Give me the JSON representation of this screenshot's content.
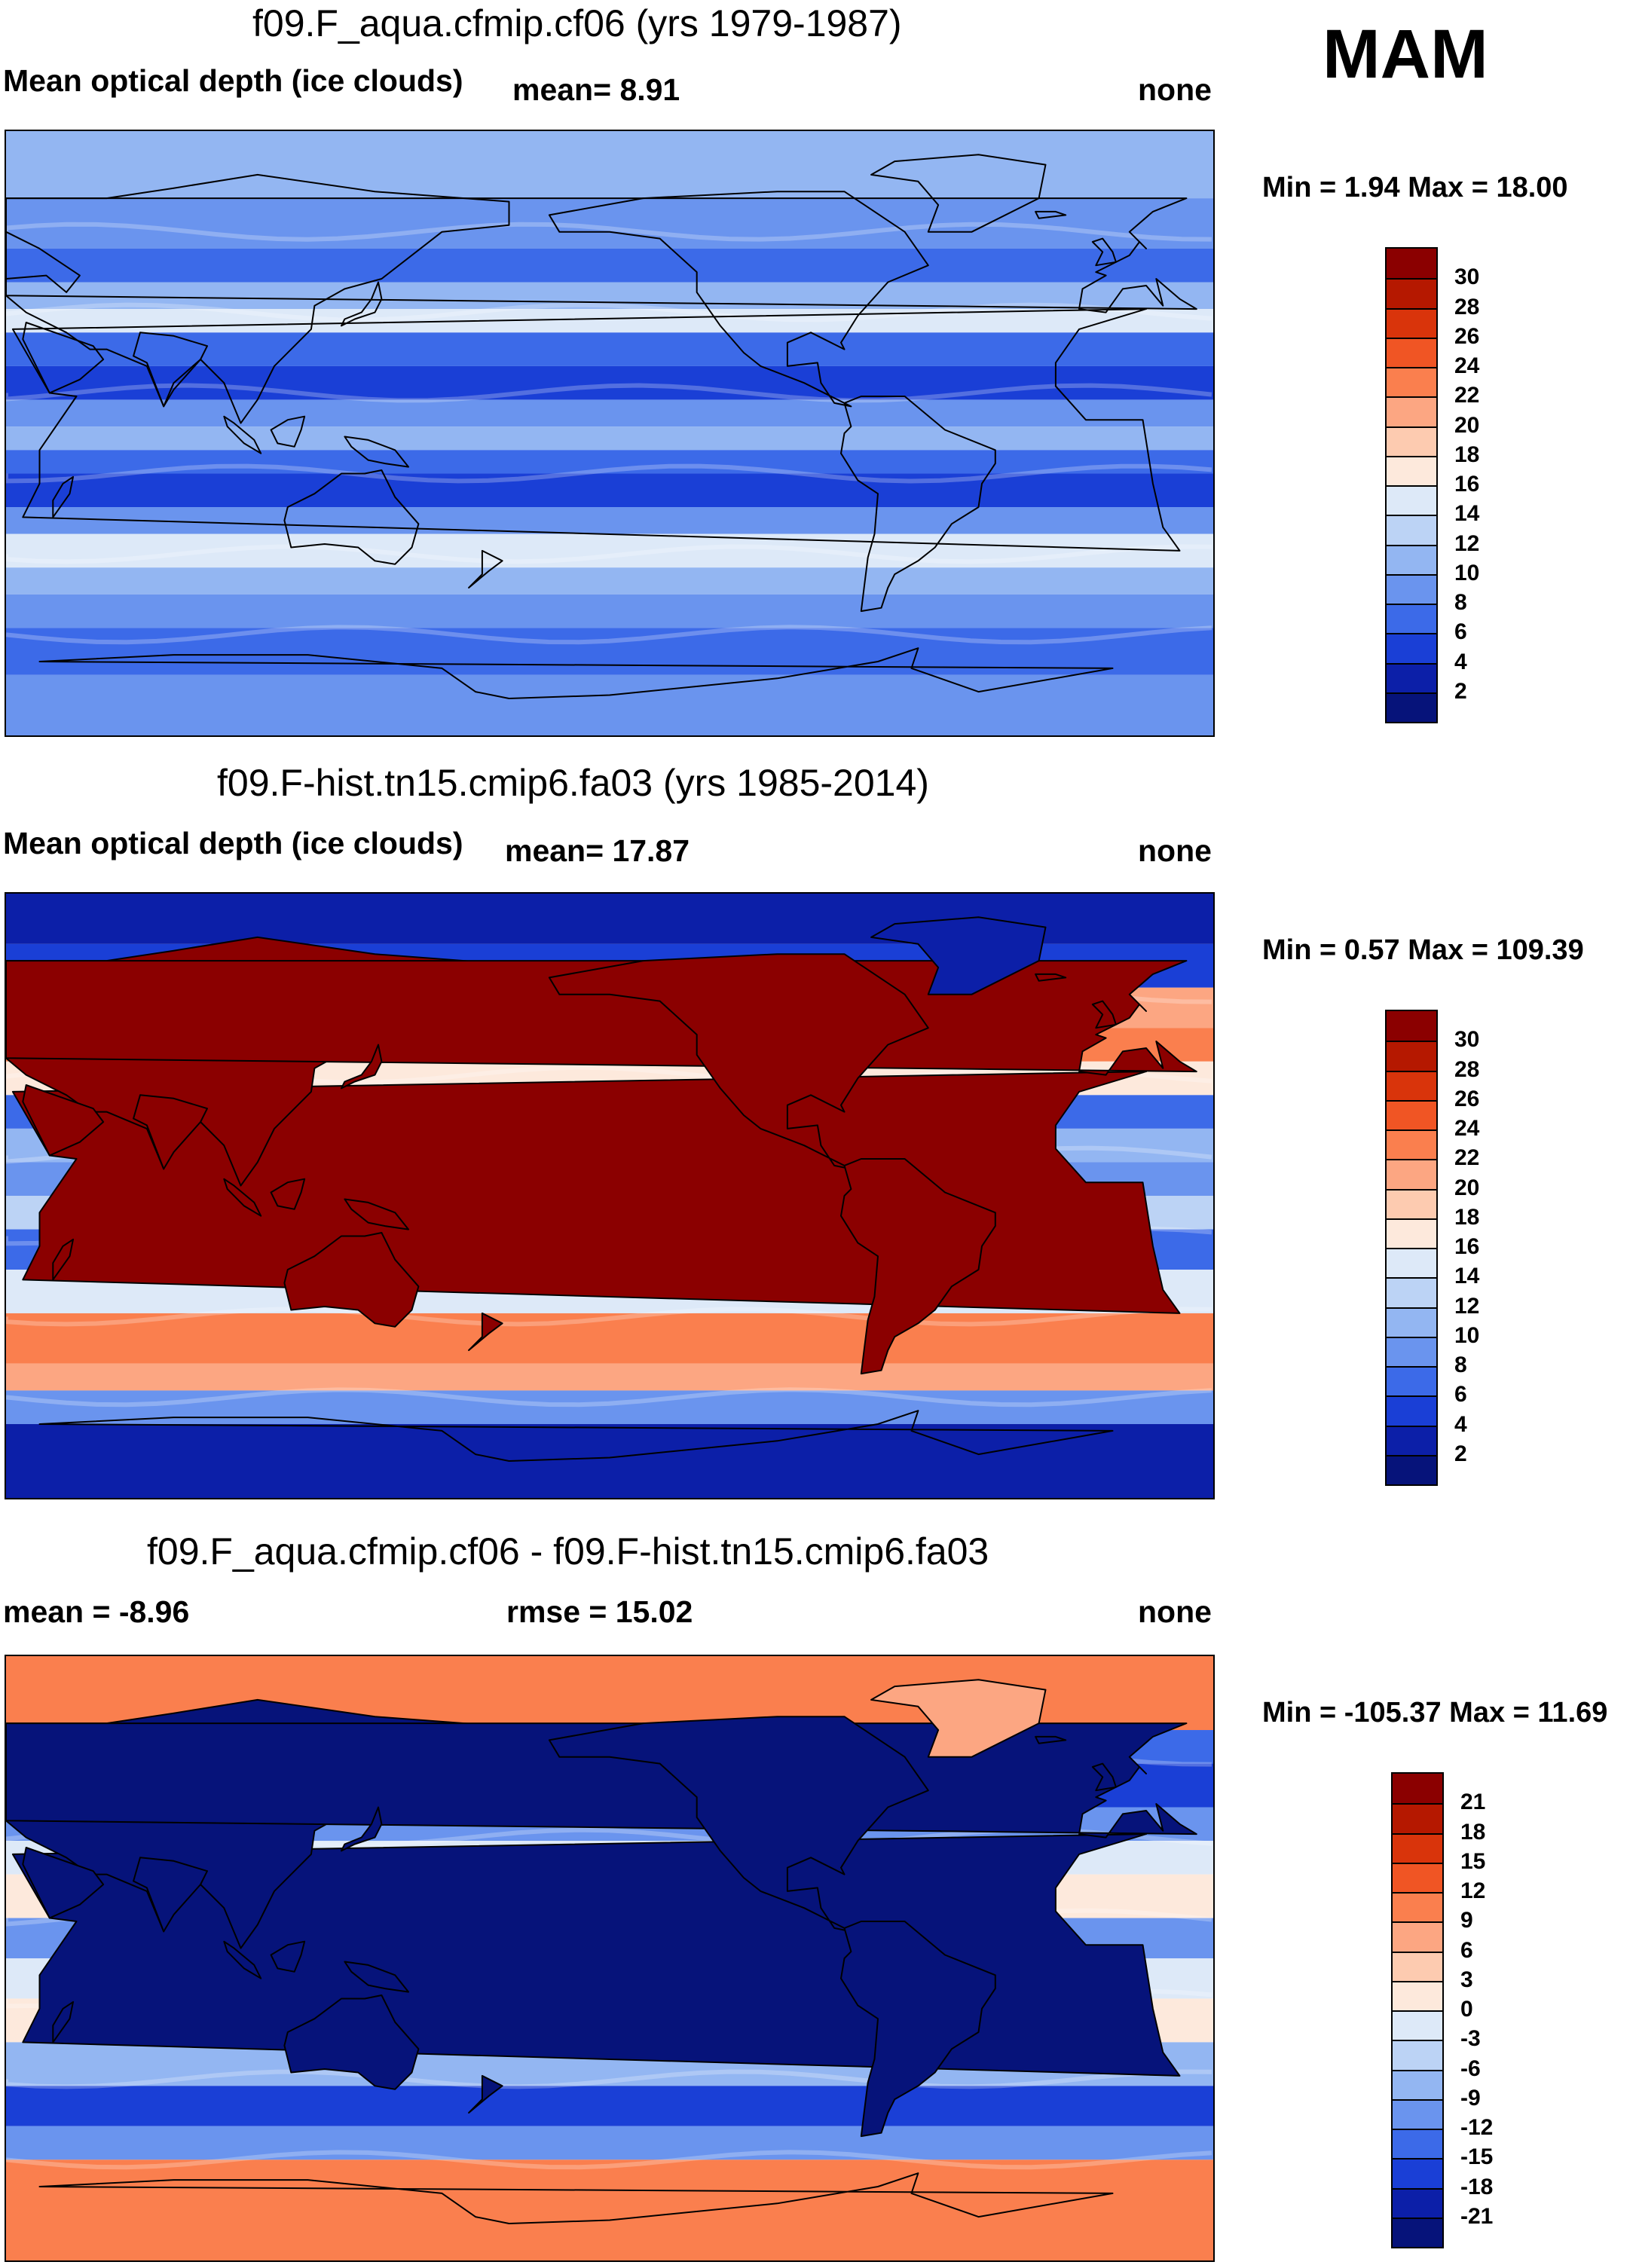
{
  "season": "MAM",
  "panels": [
    {
      "title": "f09.F_aqua.cfmip.cf06 (yrs 1979-1987)",
      "left_label": "Mean optical depth (ice clouds)",
      "mid_label": "mean=   8.91",
      "right_label": "none",
      "minmax": "Min =   1.94 Max =  18.00",
      "field": "zonal-bands",
      "colorbar": {
        "labels": [
          "30",
          "28",
          "26",
          "24",
          "22",
          "20",
          "18",
          "16",
          "14",
          "12",
          "10",
          "8",
          "6",
          "4",
          "2"
        ],
        "colors": [
          "#8b0000",
          "#b51800",
          "#d9340b",
          "#f05524",
          "#fa7f4e",
          "#fca682",
          "#fdcbb0",
          "#fde9dc",
          "#dde9f8",
          "#bcd3f5",
          "#93b6f2",
          "#6a94ee",
          "#3c6ae8",
          "#1a3fd6",
          "#0c1fa8",
          "#06137a"
        ]
      }
    },
    {
      "title": "f09.F-hist.tn15.cmip6.fa03 (yrs 1985-2014)",
      "left_label": "Mean optical depth (ice clouds)",
      "mid_label": "mean=  17.87",
      "right_label": "none",
      "minmax": "Min =   0.57 Max = 109.39",
      "field": "continents-high",
      "colorbar": {
        "labels": [
          "30",
          "28",
          "26",
          "24",
          "22",
          "20",
          "18",
          "16",
          "14",
          "12",
          "10",
          "8",
          "6",
          "4",
          "2"
        ],
        "colors": [
          "#8b0000",
          "#b51800",
          "#d9340b",
          "#f05524",
          "#fa7f4e",
          "#fca682",
          "#fdcbb0",
          "#fde9dc",
          "#dde9f8",
          "#bcd3f5",
          "#93b6f2",
          "#6a94ee",
          "#3c6ae8",
          "#1a3fd6",
          "#0c1fa8",
          "#06137a"
        ]
      }
    },
    {
      "title": "f09.F_aqua.cfmip.cf06 - f09.F-hist.tn15.cmip6.fa03",
      "left_label": "mean =  -8.96",
      "mid_label": "rmse =  15.02",
      "right_label": "none",
      "minmax": "Min = -105.37 Max =  11.69",
      "field": "difference",
      "colorbar": {
        "labels": [
          "21",
          "18",
          "15",
          "12",
          "9",
          "6",
          "3",
          "0",
          "-3",
          "-6",
          "-9",
          "-12",
          "-15",
          "-18",
          "-21"
        ],
        "colors": [
          "#8b0000",
          "#b51800",
          "#d9340b",
          "#f05524",
          "#fa7f4e",
          "#fca682",
          "#fdcbb0",
          "#fde9dc",
          "#dde9f8",
          "#bcd3f5",
          "#93b6f2",
          "#6a94ee",
          "#3c6ae8",
          "#1a3fd6",
          "#0c1fa8",
          "#06137a"
        ]
      }
    }
  ],
  "chart_data": [
    {
      "type": "heatmap",
      "title": "f09.F_aqua.cfmip.cf06 (yrs 1979-1987)",
      "variable": "Mean optical depth (ice clouds)",
      "mean": 8.91,
      "min": 1.94,
      "max": 18.0,
      "units": "none",
      "color_levels": [
        2,
        4,
        6,
        8,
        10,
        12,
        14,
        16,
        18,
        20,
        22,
        24,
        26,
        28,
        30
      ]
    },
    {
      "type": "heatmap",
      "title": "f09.F-hist.tn15.cmip6.fa03 (yrs 1985-2014)",
      "variable": "Mean optical depth (ice clouds)",
      "mean": 17.87,
      "min": 0.57,
      "max": 109.39,
      "units": "none",
      "color_levels": [
        2,
        4,
        6,
        8,
        10,
        12,
        14,
        16,
        18,
        20,
        22,
        24,
        26,
        28,
        30
      ]
    },
    {
      "type": "heatmap",
      "title": "f09.F_aqua.cfmip.cf06 - f09.F-hist.tn15.cmip6.fa03",
      "mean": -8.96,
      "rmse": 15.02,
      "min": -105.37,
      "max": 11.69,
      "units": "none",
      "color_levels": [
        -21,
        -18,
        -15,
        -12,
        -9,
        -6,
        -3,
        0,
        3,
        6,
        9,
        12,
        15,
        18,
        21
      ]
    }
  ]
}
